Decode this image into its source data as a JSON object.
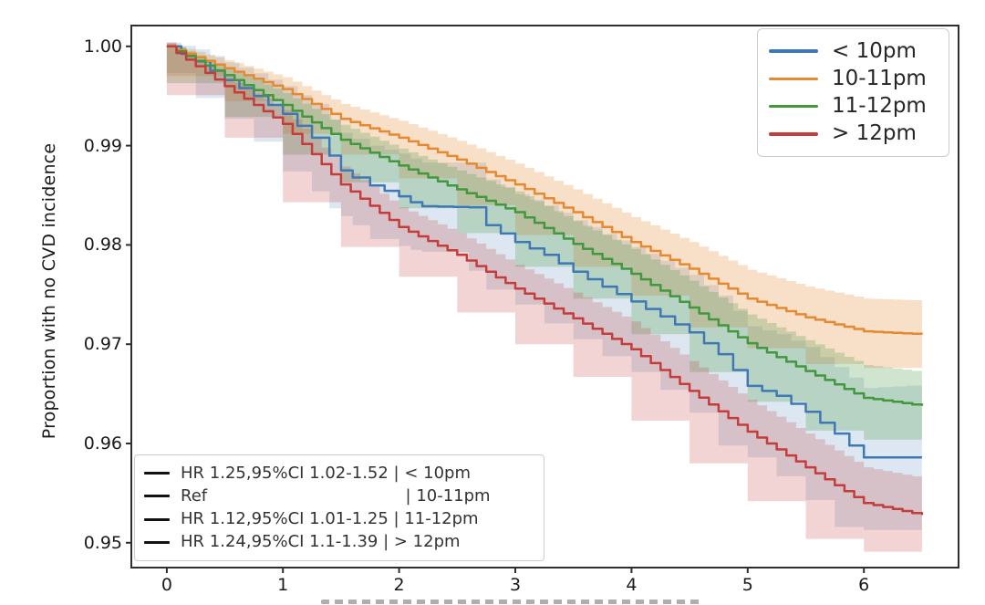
{
  "chart_data": {
    "type": "line",
    "subtype": "kaplan-meier-step-curves-with-ci-bands",
    "title": "",
    "xlabel": "",
    "xlabel_cropped": true,
    "ylabel": "Proportion with no CVD incidence",
    "xlim": [
      -0.305,
      6.815
    ],
    "ylim": [
      0.9475,
      1.0021
    ],
    "xticks": [
      0,
      1,
      2,
      3,
      4,
      5,
      6
    ],
    "ytick_values": [
      1.0,
      0.99,
      0.98,
      0.97,
      0.96,
      0.95
    ],
    "ytick_labels": [
      "1.00",
      "0.99",
      "0.98",
      "0.97",
      "0.96",
      "0.95"
    ],
    "grid": false,
    "legend_position": "upper right",
    "axis_color": "#2e2e2e",
    "series": [
      {
        "name": "< 10pm",
        "color": "#3e79b4",
        "band_alpha": 0.18,
        "step_width": 0.14,
        "x": [
          0,
          0.25,
          0.5,
          0.75,
          1.0,
          1.25,
          1.4,
          1.5,
          1.6,
          1.75,
          2.0,
          2.1,
          2.2,
          2.6,
          2.75,
          3.0,
          3.25,
          3.5,
          3.75,
          4.0,
          4.25,
          4.5,
          4.75,
          5.0,
          5.25,
          5.5,
          5.75,
          6.0,
          6.5
        ],
        "y": [
          1.0,
          0.9985,
          0.9966,
          0.995,
          0.9932,
          0.9908,
          0.989,
          0.9875,
          0.9868,
          0.986,
          0.9849,
          0.9843,
          0.9839,
          0.9838,
          0.982,
          0.9803,
          0.979,
          0.9773,
          0.9758,
          0.9743,
          0.9728,
          0.9712,
          0.969,
          0.9658,
          0.9648,
          0.9632,
          0.961,
          0.9586,
          0.9586
        ],
        "ci_half": [
          0.0004,
          0.0012,
          0.0018,
          0.0023,
          0.0028,
          0.0034,
          0.0036,
          0.0038,
          0.0039,
          0.004,
          0.0043,
          0.0044,
          0.0044,
          0.0045,
          0.0046,
          0.0048,
          0.005,
          0.0052,
          0.0053,
          0.0055,
          0.0056,
          0.0058,
          0.0059,
          0.006,
          0.0062,
          0.0065,
          0.0067,
          0.007,
          0.0073
        ]
      },
      {
        "name": "10-11pm",
        "color": "#e58a33",
        "band_alpha": 0.27,
        "step_width": 0.09,
        "x": [
          0,
          0.5,
          1.0,
          1.5,
          2.0,
          2.5,
          3.0,
          3.5,
          4.0,
          4.5,
          5.0,
          5.5,
          6.0,
          6.5
        ],
        "y": [
          1.0,
          0.9978,
          0.9957,
          0.9927,
          0.9908,
          0.9886,
          0.9861,
          0.9833,
          0.9803,
          0.9776,
          0.9746,
          0.9727,
          0.9713,
          0.971
        ],
        "ci_half": [
          0.0003,
          0.0008,
          0.0012,
          0.0015,
          0.0017,
          0.0019,
          0.0021,
          0.0023,
          0.0025,
          0.0027,
          0.0029,
          0.0031,
          0.0033,
          0.0034
        ]
      },
      {
        "name": "11-12pm",
        "color": "#43973f",
        "band_alpha": 0.25,
        "step_width": 0.09,
        "x": [
          0,
          0.5,
          1.0,
          1.5,
          2.0,
          2.5,
          3.0,
          3.5,
          4.0,
          4.5,
          5.0,
          5.5,
          6.0,
          6.5
        ],
        "y": [
          1.0,
          0.9971,
          0.9941,
          0.9906,
          0.988,
          0.9856,
          0.9833,
          0.9801,
          0.9771,
          0.9737,
          0.9701,
          0.9673,
          0.9646,
          0.9638
        ],
        "ci_half": [
          0.0003,
          0.0008,
          0.0012,
          0.0015,
          0.0017,
          0.0019,
          0.0021,
          0.0023,
          0.0025,
          0.0027,
          0.0029,
          0.0031,
          0.0033,
          0.0034
        ]
      },
      {
        "name": "> 12pm",
        "color": "#c43d3b",
        "band_alpha": 0.22,
        "step_width": 0.09,
        "x": [
          0,
          0.5,
          1.0,
          1.5,
          2.0,
          2.5,
          3.0,
          3.5,
          4.0,
          4.5,
          5.0,
          5.5,
          6.0,
          6.5
        ],
        "y": [
          1.0,
          0.996,
          0.9922,
          0.9861,
          0.9818,
          0.979,
          0.9756,
          0.9726,
          0.9695,
          0.9653,
          0.9612,
          0.9576,
          0.954,
          0.9528
        ],
        "ci_half": [
          0.0004,
          0.0009,
          0.0014,
          0.0018,
          0.002,
          0.0022,
          0.0024,
          0.0026,
          0.0028,
          0.003,
          0.0032,
          0.0034,
          0.0036,
          0.0037
        ]
      }
    ]
  },
  "legend": {
    "items": [
      {
        "label": "< 10pm",
        "color": "#3e79b4"
      },
      {
        "label": "10-11pm",
        "color": "#e58a33"
      },
      {
        "label": "11-12pm",
        "color": "#43973f"
      },
      {
        "label": "> 12pm",
        "color": "#c43d3b"
      }
    ]
  },
  "annotation_box": {
    "line_color": "#111111",
    "rows": [
      {
        "text": "HR 1.25,95%CI 1.02-1.52 | < 10pm"
      },
      {
        "text": "Ref                                      | 10-11pm"
      },
      {
        "text": "HR 1.12,95%CI 1.01-1.25 | 11-12pm"
      },
      {
        "text": "HR 1.24,95%CI 1.1-1.39 | > 12pm"
      }
    ]
  }
}
